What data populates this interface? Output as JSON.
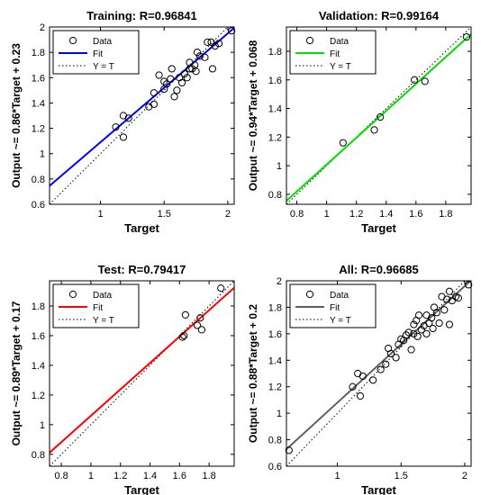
{
  "chart_data": [
    {
      "type": "scatter",
      "title": "Training: R=0.96841",
      "xlabel": "Target",
      "ylabel": "Output ~= 0.86*Target + 0.23",
      "xlim": [
        0.6,
        2.05
      ],
      "ylim": [
        0.6,
        2.0
      ],
      "xticks": [
        1,
        1.5,
        2
      ],
      "yticks": [
        0.6,
        0.8,
        1,
        1.2,
        1.4,
        1.6,
        1.8,
        2
      ],
      "fit": {
        "slope": 0.86,
        "intercept": 0.23,
        "color": "#0000ff"
      },
      "legend": {
        "position": "top-left",
        "entries": [
          "Data",
          "Fit",
          "Y = T"
        ]
      },
      "points": [
        [
          1.12,
          1.21
        ],
        [
          1.18,
          1.13
        ],
        [
          1.18,
          1.3
        ],
        [
          1.22,
          1.28
        ],
        [
          1.38,
          1.37
        ],
        [
          1.42,
          1.39
        ],
        [
          1.42,
          1.48
        ],
        [
          1.46,
          1.62
        ],
        [
          1.5,
          1.51
        ],
        [
          1.5,
          1.57
        ],
        [
          1.52,
          1.55
        ],
        [
          1.55,
          1.59
        ],
        [
          1.56,
          1.67
        ],
        [
          1.58,
          1.45
        ],
        [
          1.6,
          1.5
        ],
        [
          1.62,
          1.6
        ],
        [
          1.64,
          1.56
        ],
        [
          1.66,
          1.63
        ],
        [
          1.68,
          1.6
        ],
        [
          1.7,
          1.67
        ],
        [
          1.7,
          1.72
        ],
        [
          1.72,
          1.67
        ],
        [
          1.74,
          1.7
        ],
        [
          1.75,
          1.65
        ],
        [
          1.76,
          1.8
        ],
        [
          1.78,
          1.77
        ],
        [
          1.82,
          1.76
        ],
        [
          1.84,
          1.88
        ],
        [
          1.87,
          1.88
        ],
        [
          1.88,
          1.67
        ],
        [
          1.9,
          1.85
        ],
        [
          1.93,
          1.87
        ],
        [
          2.03,
          1.97
        ]
      ]
    },
    {
      "type": "scatter",
      "title": "Validation: R=0.99164",
      "xlabel": "Target",
      "ylabel": "Output ~= 0.94*Target + 0.068",
      "xlim": [
        0.73,
        1.97
      ],
      "ylim": [
        0.73,
        1.97
      ],
      "xticks": [
        0.8,
        1,
        1.2,
        1.4,
        1.6,
        1.8
      ],
      "yticks": [
        0.8,
        1,
        1.2,
        1.4,
        1.6,
        1.8
      ],
      "fit": {
        "slope": 0.94,
        "intercept": 0.068,
        "color": "#00e000"
      },
      "legend": {
        "position": "top-left",
        "entries": [
          "Data",
          "Fit",
          "Y = T"
        ]
      },
      "points": [
        [
          1.11,
          1.16
        ],
        [
          1.32,
          1.25
        ],
        [
          1.36,
          1.34
        ],
        [
          1.59,
          1.6
        ],
        [
          1.66,
          1.59
        ],
        [
          1.94,
          1.9
        ]
      ]
    },
    {
      "type": "scatter",
      "title": "Test: R=0.79417",
      "xlabel": "Target",
      "ylabel": "Output ~= 0.89*Target + 0.17",
      "xlim": [
        0.72,
        1.97
      ],
      "ylim": [
        0.72,
        1.97
      ],
      "xticks": [
        0.8,
        1,
        1.2,
        1.4,
        1.6,
        1.8
      ],
      "yticks": [
        0.8,
        1,
        1.2,
        1.4,
        1.6,
        1.8
      ],
      "fit": {
        "slope": 0.89,
        "intercept": 0.17,
        "color": "#ff0000"
      },
      "legend": {
        "position": "top-left",
        "entries": [
          "Data",
          "Fit",
          "Y = T"
        ]
      },
      "points": [
        [
          1.62,
          1.59
        ],
        [
          1.63,
          1.6
        ],
        [
          1.64,
          1.74
        ],
        [
          1.72,
          1.67
        ],
        [
          1.74,
          1.72
        ],
        [
          1.75,
          1.64
        ],
        [
          1.88,
          1.92
        ]
      ]
    },
    {
      "type": "scatter",
      "title": "All: R=0.96685",
      "xlabel": "Target",
      "ylabel": "Output ~= 0.88*Target + 0.2",
      "xlim": [
        0.6,
        2.05
      ],
      "ylim": [
        0.6,
        2.0
      ],
      "xticks": [
        1,
        1.5,
        2
      ],
      "yticks": [
        0.6,
        0.8,
        1,
        1.2,
        1.4,
        1.6,
        1.8,
        2
      ],
      "fit": {
        "slope": 0.88,
        "intercept": 0.2,
        "color": "#606060"
      },
      "legend": {
        "position": "top-left",
        "entries": [
          "Data",
          "Fit",
          "Y = T"
        ]
      },
      "points": [
        [
          0.62,
          0.72
        ],
        [
          1.12,
          1.2
        ],
        [
          1.16,
          1.3
        ],
        [
          1.18,
          1.13
        ],
        [
          1.2,
          1.28
        ],
        [
          1.28,
          1.25
        ],
        [
          1.34,
          1.33
        ],
        [
          1.38,
          1.37
        ],
        [
          1.4,
          1.49
        ],
        [
          1.42,
          1.45
        ],
        [
          1.46,
          1.42
        ],
        [
          1.48,
          1.52
        ],
        [
          1.5,
          1.56
        ],
        [
          1.52,
          1.55
        ],
        [
          1.54,
          1.59
        ],
        [
          1.56,
          1.61
        ],
        [
          1.58,
          1.48
        ],
        [
          1.6,
          1.6
        ],
        [
          1.6,
          1.67
        ],
        [
          1.62,
          1.7
        ],
        [
          1.63,
          1.58
        ],
        [
          1.64,
          1.74
        ],
        [
          1.66,
          1.63
        ],
        [
          1.68,
          1.66
        ],
        [
          1.7,
          1.6
        ],
        [
          1.7,
          1.74
        ],
        [
          1.72,
          1.68
        ],
        [
          1.74,
          1.72
        ],
        [
          1.75,
          1.64
        ],
        [
          1.76,
          1.8
        ],
        [
          1.78,
          1.76
        ],
        [
          1.8,
          1.68
        ],
        [
          1.82,
          1.88
        ],
        [
          1.84,
          1.78
        ],
        [
          1.86,
          1.86
        ],
        [
          1.88,
          1.67
        ],
        [
          1.88,
          1.92
        ],
        [
          1.9,
          1.85
        ],
        [
          1.93,
          1.88
        ],
        [
          1.95,
          1.87
        ],
        [
          2.03,
          1.97
        ]
      ]
    }
  ]
}
